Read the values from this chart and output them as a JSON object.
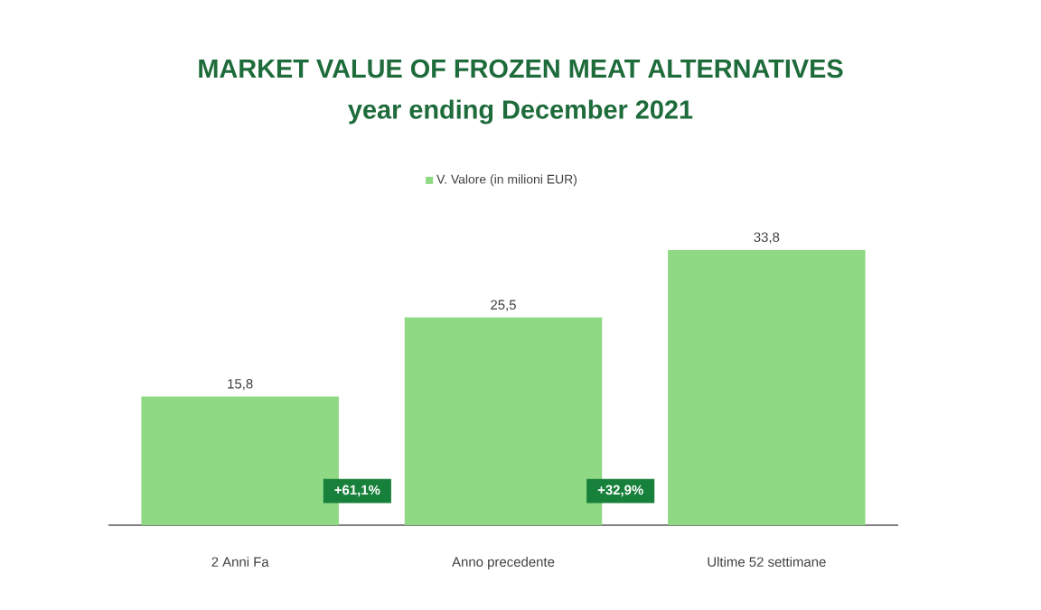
{
  "chart_data": {
    "type": "bar",
    "title": "MARKET VALUE OF FROZEN MEAT ALTERNATIVES",
    "subtitle": "year ending December 2021",
    "categories": [
      "2 Anni Fa",
      "Anno precedente",
      "Ultime 52 settimane"
    ],
    "series": [
      {
        "name": "V. Valore (in milioni EUR)",
        "color": "#8fd884",
        "values": [
          15.8,
          25.5,
          33.8
        ],
        "value_labels": [
          "15,8",
          "25,5",
          "33,8"
        ]
      }
    ],
    "annotations": [
      "+61,1%",
      "+32,9%"
    ],
    "legend": "top"
  }
}
